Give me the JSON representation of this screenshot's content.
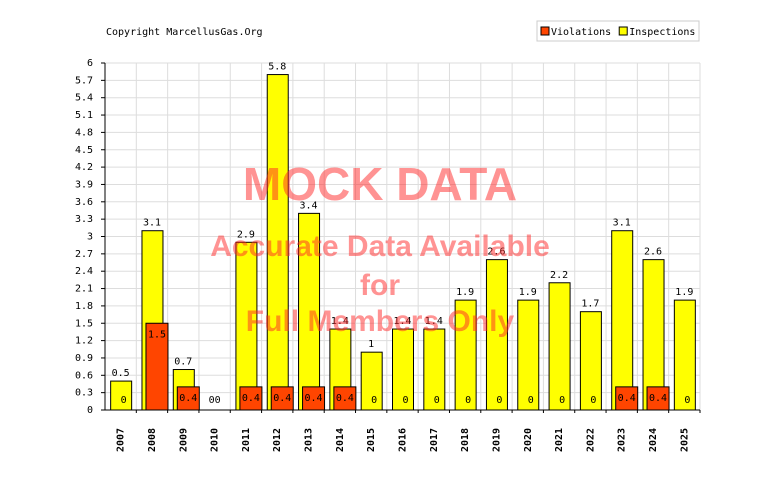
{
  "chart_data": {
    "type": "bar",
    "copyright": "Copyright MarcellusGas.Org",
    "annotations": [
      "MOCK DATA",
      "Accurate Data Available",
      "for",
      "Full Members Only"
    ],
    "categories": [
      "2007",
      "2008",
      "2009",
      "2010",
      "2011",
      "2012",
      "2013",
      "2014",
      "2015",
      "2016",
      "2017",
      "2018",
      "2019",
      "2020",
      "2021",
      "2022",
      "2023",
      "2024",
      "2025"
    ],
    "series": [
      {
        "name": "Inspections",
        "color": "#ffff00",
        "values": [
          0.5,
          3.1,
          0.7,
          0,
          2.9,
          5.8,
          3.4,
          1.4,
          1,
          1.4,
          1.4,
          1.9,
          2.6,
          1.9,
          2.2,
          1.7,
          3.1,
          2.6,
          1.9
        ]
      },
      {
        "name": "Violations",
        "color": "#ff4500",
        "values": [
          0,
          1.5,
          0.4,
          0,
          0.4,
          0.4,
          0.4,
          0.4,
          0,
          0,
          0,
          0,
          0,
          0,
          0,
          0,
          0.4,
          0.4,
          0
        ]
      }
    ],
    "legend_order": [
      1,
      0
    ],
    "legend": "top-right",
    "ylim": [
      0,
      6
    ],
    "yticks": [
      0,
      0.3,
      0.6,
      0.9,
      1.2,
      1.5,
      1.8,
      2.1,
      2.4,
      2.7,
      3,
      3.3,
      3.6,
      3.9,
      4.2,
      4.5,
      4.8,
      5.1,
      5.4,
      5.7,
      6
    ],
    "grid": true
  }
}
